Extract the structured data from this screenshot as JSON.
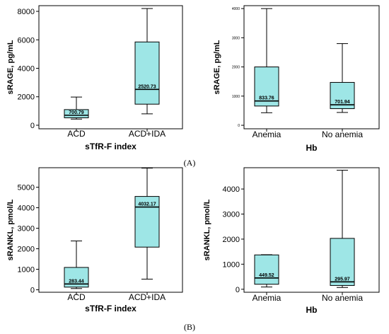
{
  "figure": {
    "panel_labels": [
      "(A)",
      "(B)"
    ],
    "box_color": "#9ee6e6",
    "line_color": "#000000"
  },
  "chart_data": [
    {
      "type": "boxplot",
      "ylabel": "sRAGE, pg/mL",
      "xlabel": "sTfR-F index",
      "ylim": [
        -250,
        8400
      ],
      "yticks": [
        0,
        2000,
        4000,
        6000,
        8000
      ],
      "categories": [
        "ACD",
        "ACD+IDA"
      ],
      "boxes": [
        {
          "label": "ACD",
          "min": 430,
          "q1": 520,
          "median": 700.79,
          "q3": 1100,
          "max": 1980,
          "median_label": "700.79"
        },
        {
          "label": "ACD+IDA",
          "min": 800,
          "q1": 1480,
          "median": 2520.73,
          "q3": 5850,
          "max": 8200,
          "median_label": "2520.73"
        }
      ]
    },
    {
      "type": "boxplot",
      "ylabel": "sRAGE, pg/mL",
      "xlabel": "Hb",
      "ylim": [
        -120,
        4100
      ],
      "yticks": [
        0,
        1000,
        2000,
        3000,
        4000
      ],
      "categories": [
        "Anemia",
        "No anemia"
      ],
      "boxes": [
        {
          "label": "Anemia",
          "min": 430,
          "q1": 660,
          "median": 833.76,
          "q3": 2000,
          "max": 4000,
          "median_label": "833.76"
        },
        {
          "label": "No anemia",
          "min": 440,
          "q1": 570,
          "median": 701.94,
          "q3": 1470,
          "max": 2800,
          "median_label": "701.94"
        }
      ]
    },
    {
      "type": "boxplot",
      "ylabel": "sRANKL, pmol/L",
      "xlabel": "sTfR-F index",
      "ylim": [
        -120,
        5950
      ],
      "yticks": [
        0,
        1000,
        2000,
        3000,
        4000,
        5000
      ],
      "categories": [
        "ACD",
        "ACD+IDA"
      ],
      "boxes": [
        {
          "label": "ACD",
          "min": 60,
          "q1": 130,
          "median": 283.44,
          "q3": 1090,
          "max": 2380,
          "median_label": "283.44"
        },
        {
          "label": "ACD+IDA",
          "min": 520,
          "q1": 2080,
          "median": 4032.17,
          "q3": 4550,
          "max": 5930,
          "median_label": "4032.17"
        }
      ]
    },
    {
      "type": "boxplot",
      "ylabel": "sRANKL, pmol/L",
      "xlabel": "Hb",
      "ylim": [
        -120,
        4850
      ],
      "yticks": [
        0,
        1000,
        2000,
        3000,
        4000
      ],
      "categories": [
        "Anemia",
        "No anemia"
      ],
      "boxes": [
        {
          "label": "Anemia",
          "min": 90,
          "q1": 200,
          "median": 449.52,
          "q3": 1370,
          "max": 1380,
          "median_label": "449.52"
        },
        {
          "label": "No anemia",
          "min": 70,
          "q1": 150,
          "median": 295.97,
          "q3": 2030,
          "max": 4750,
          "median_label": "295.97"
        }
      ]
    }
  ]
}
